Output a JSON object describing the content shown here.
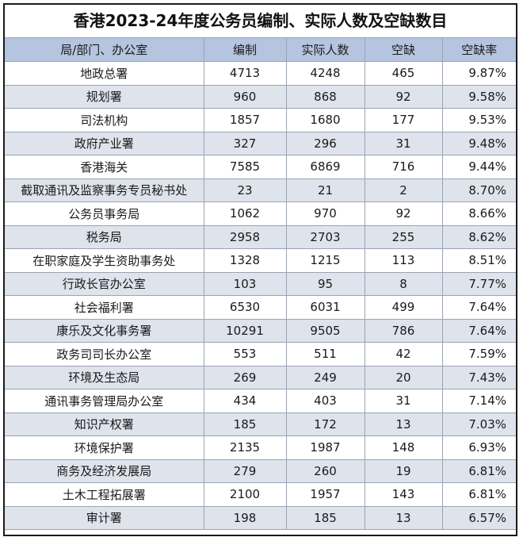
{
  "chart_data": {
    "type": "table",
    "title": "香港2023-24年度公务员编制、实际人数及空缺数目",
    "columns": [
      "局/部门、办公室",
      "编制",
      "实际人数",
      "空缺",
      "空缺率"
    ],
    "rows": [
      [
        "地政总署",
        "4713",
        "4248",
        "465",
        "9.87%"
      ],
      [
        "规划署",
        "960",
        "868",
        "92",
        "9.58%"
      ],
      [
        "司法机构",
        "1857",
        "1680",
        "177",
        "9.53%"
      ],
      [
        "政府产业署",
        "327",
        "296",
        "31",
        "9.48%"
      ],
      [
        "香港海关",
        "7585",
        "6869",
        "716",
        "9.44%"
      ],
      [
        "截取通讯及监察事务专员秘书处",
        "23",
        "21",
        "2",
        "8.70%"
      ],
      [
        "公务员事务局",
        "1062",
        "970",
        "92",
        "8.66%"
      ],
      [
        "税务局",
        "2958",
        "2703",
        "255",
        "8.62%"
      ],
      [
        "在职家庭及学生资助事务处",
        "1328",
        "1215",
        "113",
        "8.51%"
      ],
      [
        "行政长官办公室",
        "103",
        "95",
        "8",
        "7.77%"
      ],
      [
        "社会福利署",
        "6530",
        "6031",
        "499",
        "7.64%"
      ],
      [
        "康乐及文化事务署",
        "10291",
        "9505",
        "786",
        "7.64%"
      ],
      [
        "政务司司长办公室",
        "553",
        "511",
        "42",
        "7.59%"
      ],
      [
        "环境及生态局",
        "269",
        "249",
        "20",
        "7.43%"
      ],
      [
        "通讯事务管理局办公室",
        "434",
        "403",
        "31",
        "7.14%"
      ],
      [
        "知识产权署",
        "185",
        "172",
        "13",
        "7.03%"
      ],
      [
        "环境保护署",
        "2135",
        "1987",
        "148",
        "6.93%"
      ],
      [
        "商务及经济发展局",
        "279",
        "260",
        "19",
        "6.81%"
      ],
      [
        "土木工程拓展署",
        "2100",
        "1957",
        "143",
        "6.81%"
      ],
      [
        "审计署",
        "198",
        "185",
        "13",
        "6.57%"
      ]
    ]
  },
  "colors": {
    "header_bg": "#b5c4df",
    "stripe_bg": "#dee3ec",
    "row_bg": "#ffffff",
    "grid_line": "#9aa4b4",
    "frame_border": "#1a1a1a"
  }
}
